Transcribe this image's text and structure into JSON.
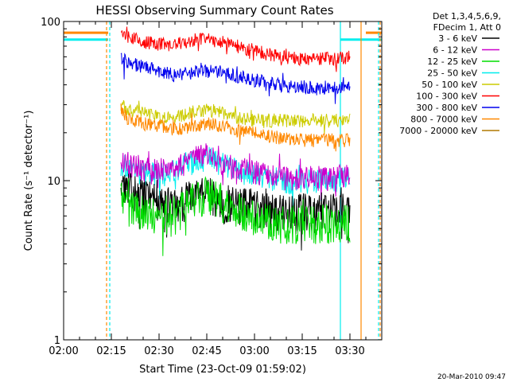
{
  "chart_data": {
    "type": "line",
    "title": "HESSI Observing Summary Count Rates",
    "xlabel": "Start Time (23-Oct-09 01:59:02)",
    "ylabel": "Count Rate (s⁻¹ detector⁻¹)",
    "y_scale": "log",
    "ylim": [
      1,
      100
    ],
    "y_ticks": [
      "1",
      "10",
      "100"
    ],
    "x_range_minutes": [
      0,
      100
    ],
    "x_ticks": [
      "02:00",
      "02:15",
      "02:30",
      "02:45",
      "03:00",
      "03:15",
      "03:30"
    ],
    "x_tick_minutes": [
      0,
      15,
      30,
      45,
      60,
      75,
      90
    ],
    "legend_header": [
      "Det 1,3,4,5,6,9,",
      "FDecim 1, Att 0"
    ],
    "series": [
      {
        "name": "3 - 6 keV",
        "color": "#000000",
        "points": [
          [
            18,
            11
          ],
          [
            20,
            9
          ],
          [
            25,
            8
          ],
          [
            30,
            7.5
          ],
          [
            35,
            7
          ],
          [
            40,
            8
          ],
          [
            45,
            8.5
          ],
          [
            50,
            7.5
          ],
          [
            55,
            7
          ],
          [
            60,
            7
          ],
          [
            65,
            6.5
          ],
          [
            70,
            6.5
          ],
          [
            75,
            6.5
          ],
          [
            80,
            6.5
          ],
          [
            85,
            6.5
          ],
          [
            90,
            6.5
          ]
        ]
      },
      {
        "name": "6 - 12 keV",
        "color": "#cc00cc",
        "points": [
          [
            18,
            14
          ],
          [
            20,
            13
          ],
          [
            25,
            12
          ],
          [
            30,
            12
          ],
          [
            35,
            12
          ],
          [
            40,
            13.5
          ],
          [
            45,
            15
          ],
          [
            50,
            13
          ],
          [
            55,
            12
          ],
          [
            60,
            11.5
          ],
          [
            65,
            11
          ],
          [
            70,
            10.5
          ],
          [
            75,
            10.5
          ],
          [
            80,
            10.5
          ],
          [
            85,
            10.5
          ],
          [
            90,
            11
          ]
        ]
      },
      {
        "name": "12 - 25 keV",
        "color": "#00dd00",
        "points": [
          [
            18,
            8.5
          ],
          [
            20,
            7
          ],
          [
            25,
            6.5
          ],
          [
            30,
            6
          ],
          [
            35,
            6
          ],
          [
            40,
            7.5
          ],
          [
            45,
            8.5
          ],
          [
            50,
            7.5
          ],
          [
            55,
            6.5
          ],
          [
            60,
            6
          ],
          [
            65,
            5.5
          ],
          [
            70,
            5.5
          ],
          [
            75,
            5.5
          ],
          [
            80,
            5.5
          ],
          [
            85,
            5.5
          ],
          [
            90,
            5.5
          ]
        ]
      },
      {
        "name": "25 - 50 keV",
        "color": "#00eeee",
        "points": [
          [
            18,
            13
          ],
          [
            20,
            12
          ],
          [
            25,
            11.5
          ],
          [
            30,
            11
          ],
          [
            35,
            11.5
          ],
          [
            40,
            13
          ],
          [
            45,
            14
          ],
          [
            50,
            13
          ],
          [
            55,
            11.5
          ],
          [
            60,
            11
          ],
          [
            65,
            10.5
          ],
          [
            70,
            10
          ],
          [
            75,
            10
          ],
          [
            80,
            10
          ],
          [
            85,
            10
          ],
          [
            90,
            10.5
          ]
        ]
      },
      {
        "name": "50 - 100 keV",
        "color": "#cccc00",
        "points": [
          [
            18,
            30
          ],
          [
            20,
            28
          ],
          [
            25,
            27
          ],
          [
            30,
            25
          ],
          [
            35,
            25
          ],
          [
            40,
            27
          ],
          [
            45,
            28
          ],
          [
            50,
            27
          ],
          [
            55,
            25
          ],
          [
            60,
            24
          ],
          [
            65,
            24
          ],
          [
            70,
            24
          ],
          [
            75,
            24
          ],
          [
            80,
            24
          ],
          [
            85,
            24
          ],
          [
            90,
            24
          ]
        ]
      },
      {
        "name": "100 - 300 keV",
        "color": "#ff0000",
        "points": [
          [
            18,
            88
          ],
          [
            20,
            80
          ],
          [
            25,
            75
          ],
          [
            30,
            72
          ],
          [
            35,
            72
          ],
          [
            40,
            76
          ],
          [
            45,
            78
          ],
          [
            50,
            75
          ],
          [
            55,
            70
          ],
          [
            60,
            66
          ],
          [
            65,
            62
          ],
          [
            70,
            60
          ],
          [
            75,
            58
          ],
          [
            80,
            58
          ],
          [
            85,
            59
          ],
          [
            90,
            60
          ]
        ]
      },
      {
        "name": "300 - 800 keV",
        "color": "#0000ee",
        "points": [
          [
            18,
            60
          ],
          [
            20,
            55
          ],
          [
            25,
            52
          ],
          [
            30,
            49
          ],
          [
            35,
            46
          ],
          [
            40,
            48
          ],
          [
            45,
            49
          ],
          [
            50,
            48
          ],
          [
            55,
            45
          ],
          [
            60,
            43
          ],
          [
            65,
            41
          ],
          [
            70,
            40
          ],
          [
            75,
            39
          ],
          [
            80,
            38
          ],
          [
            85,
            38
          ],
          [
            90,
            38
          ]
        ]
      },
      {
        "name": "800 - 7000 keV",
        "color": "#ff8800",
        "points": [
          [
            18,
            27
          ],
          [
            20,
            25
          ],
          [
            25,
            23
          ],
          [
            30,
            22
          ],
          [
            35,
            21
          ],
          [
            40,
            22
          ],
          [
            45,
            23
          ],
          [
            50,
            22
          ],
          [
            55,
            21
          ],
          [
            60,
            20
          ],
          [
            65,
            19
          ],
          [
            70,
            18.5
          ],
          [
            75,
            18
          ],
          [
            80,
            18
          ],
          [
            85,
            18
          ],
          [
            90,
            18
          ]
        ]
      },
      {
        "name": "7000 - 20000 keV",
        "color": "#b07800",
        "points": []
      }
    ],
    "vertical_markers": [
      {
        "minute": 13.5,
        "color": "#ff8800",
        "style": "dashed"
      },
      {
        "minute": 14.5,
        "color": "#00eeee",
        "style": "dashed"
      },
      {
        "minute": 87.0,
        "color": "#00eeee",
        "style": "solid"
      },
      {
        "minute": 93.5,
        "color": "#ff8800",
        "style": "solid"
      },
      {
        "minute": 99.0,
        "color": "#00eeee",
        "style": "dashed"
      },
      {
        "minute": 99.5,
        "color": "#ff8800",
        "style": "dashed"
      }
    ],
    "flag_levels": [
      {
        "color": "#ff8800",
        "value": 85,
        "ranges": [
          [
            0,
            14
          ],
          [
            95,
            100
          ]
        ]
      },
      {
        "color": "#00eeee",
        "value": 77,
        "ranges": [
          [
            0,
            14
          ],
          [
            87,
            100
          ]
        ]
      }
    ],
    "footer_timestamp": "20-Mar-2010 09:47"
  }
}
